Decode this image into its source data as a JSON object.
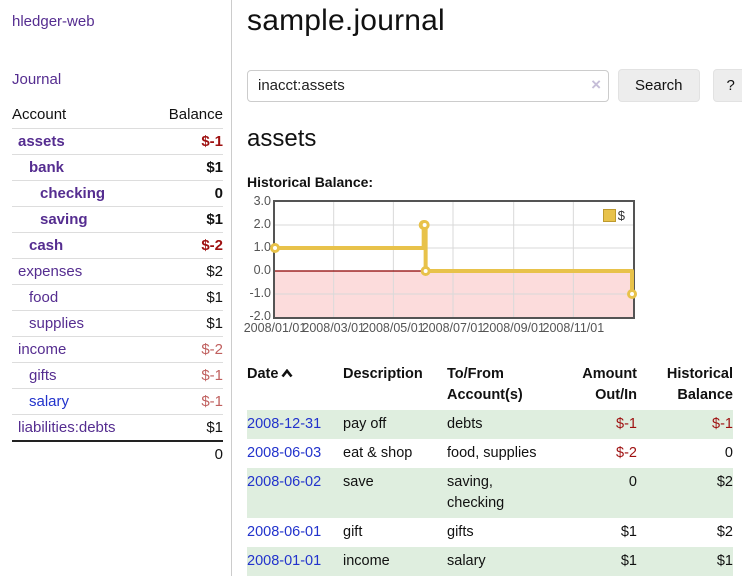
{
  "sidebar": {
    "app_title": "hledger-web",
    "nav_journal": "Journal",
    "accounts_headers": {
      "account": "Account",
      "balance": "Balance"
    },
    "accounts_rows": [
      {
        "name": "assets",
        "balance": "$-1",
        "indent": 1,
        "bold": true,
        "name_color": "purple",
        "balance_color": "negative"
      },
      {
        "name": "bank",
        "balance": "$1",
        "indent": 2,
        "bold": true,
        "name_color": "purple",
        "balance_color": "plain"
      },
      {
        "name": "checking",
        "balance": "0",
        "indent": 3,
        "bold": true,
        "name_color": "purple",
        "balance_color": "plain"
      },
      {
        "name": "saving",
        "balance": "$1",
        "indent": 3,
        "bold": true,
        "name_color": "purple",
        "balance_color": "plain"
      },
      {
        "name": "cash",
        "balance": "$-2",
        "indent": 2,
        "bold": true,
        "name_color": "purple",
        "balance_color": "negative"
      },
      {
        "name": "expenses",
        "balance": "$2",
        "indent": 1,
        "bold": false,
        "name_color": "purple",
        "balance_color": "plain"
      },
      {
        "name": "food",
        "balance": "$1",
        "indent": 2,
        "bold": false,
        "name_color": "purple",
        "balance_color": "plain"
      },
      {
        "name": "supplies",
        "balance": "$1",
        "indent": 2,
        "bold": false,
        "name_color": "purple",
        "balance_color": "plain"
      },
      {
        "name": "income",
        "balance": "$-2",
        "indent": 1,
        "bold": false,
        "name_color": "purple",
        "balance_color": "rose"
      },
      {
        "name": "gifts",
        "balance": "$-1",
        "indent": 2,
        "bold": false,
        "name_color": "purple",
        "balance_color": "rose"
      },
      {
        "name": "salary",
        "balance": "$-1",
        "indent": 2,
        "bold": false,
        "name_color": "blue",
        "balance_color": "rose"
      },
      {
        "name": "liabilities:debts",
        "balance": "$1",
        "indent": 1,
        "bold": false,
        "name_color": "purple",
        "balance_color": "plain"
      }
    ],
    "accounts_total": "0"
  },
  "main": {
    "title": "sample.journal",
    "search": {
      "value": "inacct:assets",
      "clear_icon": "×",
      "button_label": "Search",
      "help_label": "?"
    },
    "account_heading": "assets",
    "register": {
      "headers": {
        "date": "Date",
        "description": "Description",
        "accounts": "To/From Account(s)",
        "amount": "Amount Out/In",
        "balance": "Historical Balance"
      },
      "sort_icon": "chevron-up",
      "rows": [
        {
          "date": "2008-12-31",
          "description": "pay off",
          "accounts": "debts",
          "amount": "$-1",
          "amount_color": "negative",
          "balance": "$-1",
          "balance_color": "negative",
          "shaded": true
        },
        {
          "date": "2008-06-03",
          "description": "eat & shop",
          "accounts": "food, supplies",
          "amount": "$-2",
          "amount_color": "negative",
          "balance": "0",
          "balance_color": "plain",
          "shaded": false
        },
        {
          "date": "2008-06-02",
          "description": "save",
          "accounts": "saving, checking",
          "amount": "0",
          "amount_color": "plain",
          "balance": "$2",
          "balance_color": "plain",
          "shaded": true
        },
        {
          "date": "2008-06-01",
          "description": "gift",
          "accounts": "gifts",
          "amount": "$1",
          "amount_color": "plain",
          "balance": "$2",
          "balance_color": "plain",
          "shaded": false
        },
        {
          "date": "2008-01-01",
          "description": "income",
          "accounts": "salary",
          "amount": "$1",
          "amount_color": "plain",
          "balance": "$1",
          "balance_color": "plain",
          "shaded": true
        }
      ]
    }
  },
  "chart_data": {
    "type": "line",
    "title": "Historical Balance:",
    "step": true,
    "series": [
      {
        "name": "$",
        "points": [
          [
            "2008/01/01",
            1
          ],
          [
            "2008/06/01",
            2
          ],
          [
            "2008/06/02",
            2
          ],
          [
            "2008/06/03",
            0
          ],
          [
            "2008/12/31",
            -1
          ]
        ]
      }
    ],
    "x_tick_labels": [
      "2008/01/01",
      "2008/03/01",
      "2008/05/01",
      "2008/07/01",
      "2008/09/01",
      "2008/11/01"
    ],
    "y_tick_labels": [
      "3.0",
      "2.0",
      "1.0",
      "0.0",
      "-1.0",
      "-2.0"
    ],
    "ylim": [
      -2,
      3
    ],
    "xrange": [
      "2008/01/01",
      "2008/12/31"
    ],
    "legend_position": "top-right",
    "grid": true,
    "colors": {
      "line": "#e8c24a",
      "marker_fill": "#ffffff",
      "negative_region": "#fcdcdc",
      "zero_line": "#8b0000",
      "grid": "#d9d9d9",
      "border": "#545454"
    }
  },
  "colors": {
    "purple": "#552d90",
    "blue": "#2233cc",
    "negative": "#9e1010",
    "rose": "#c0605f",
    "shaded_row": "#dfeedf",
    "accent_gold": "#e8c24a"
  }
}
